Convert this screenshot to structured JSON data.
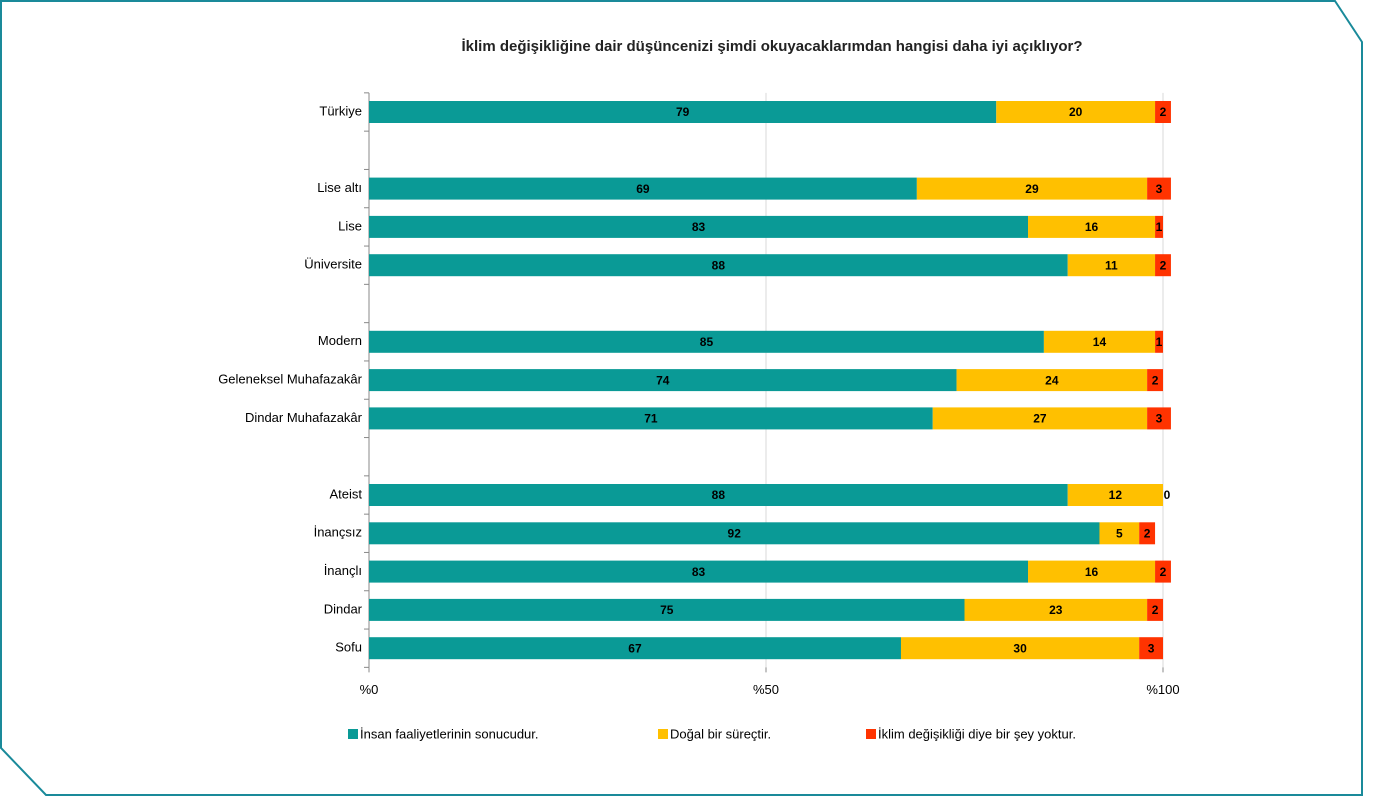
{
  "chart_data": {
    "type": "stacked_barh",
    "title": "İklim değişikliğine dair düşüncenizi şimdi okuyacaklarımdan hangisi daha iyi açıklıyor?",
    "categories": [
      "Türkiye",
      null,
      "Lise altı",
      "Lise",
      "Üniversite",
      null,
      "Modern",
      "Geleneksel Muhafazakâr",
      "Dindar Muhafazakâr",
      null,
      "Ateist",
      "İnançsız",
      "İnançlı",
      "Dindar",
      "Sofu"
    ],
    "series": [
      {
        "name": "İnsan faaliyetlerinin sonucudur.",
        "color": "#0a9a96",
        "values": [
          79,
          null,
          69,
          83,
          88,
          null,
          85,
          74,
          71,
          null,
          88,
          92,
          83,
          75,
          67
        ]
      },
      {
        "name": "Doğal bir süreçtir.",
        "color": "#ffc000",
        "values": [
          20,
          null,
          29,
          16,
          11,
          null,
          14,
          24,
          27,
          null,
          12,
          5,
          16,
          23,
          30
        ]
      },
      {
        "name": "İklim değişikliği diye bir şey yoktur.",
        "color": "#ff3300",
        "values": [
          2,
          null,
          3,
          1,
          2,
          null,
          1,
          2,
          3,
          null,
          0,
          2,
          2,
          2,
          3
        ]
      }
    ],
    "xlim": [
      0,
      100
    ],
    "xticks": [
      {
        "value": 0,
        "label": "%0"
      },
      {
        "value": 50,
        "label": "%50"
      },
      {
        "value": 100,
        "label": "%100"
      }
    ],
    "grid": true,
    "legend": "bottom"
  }
}
